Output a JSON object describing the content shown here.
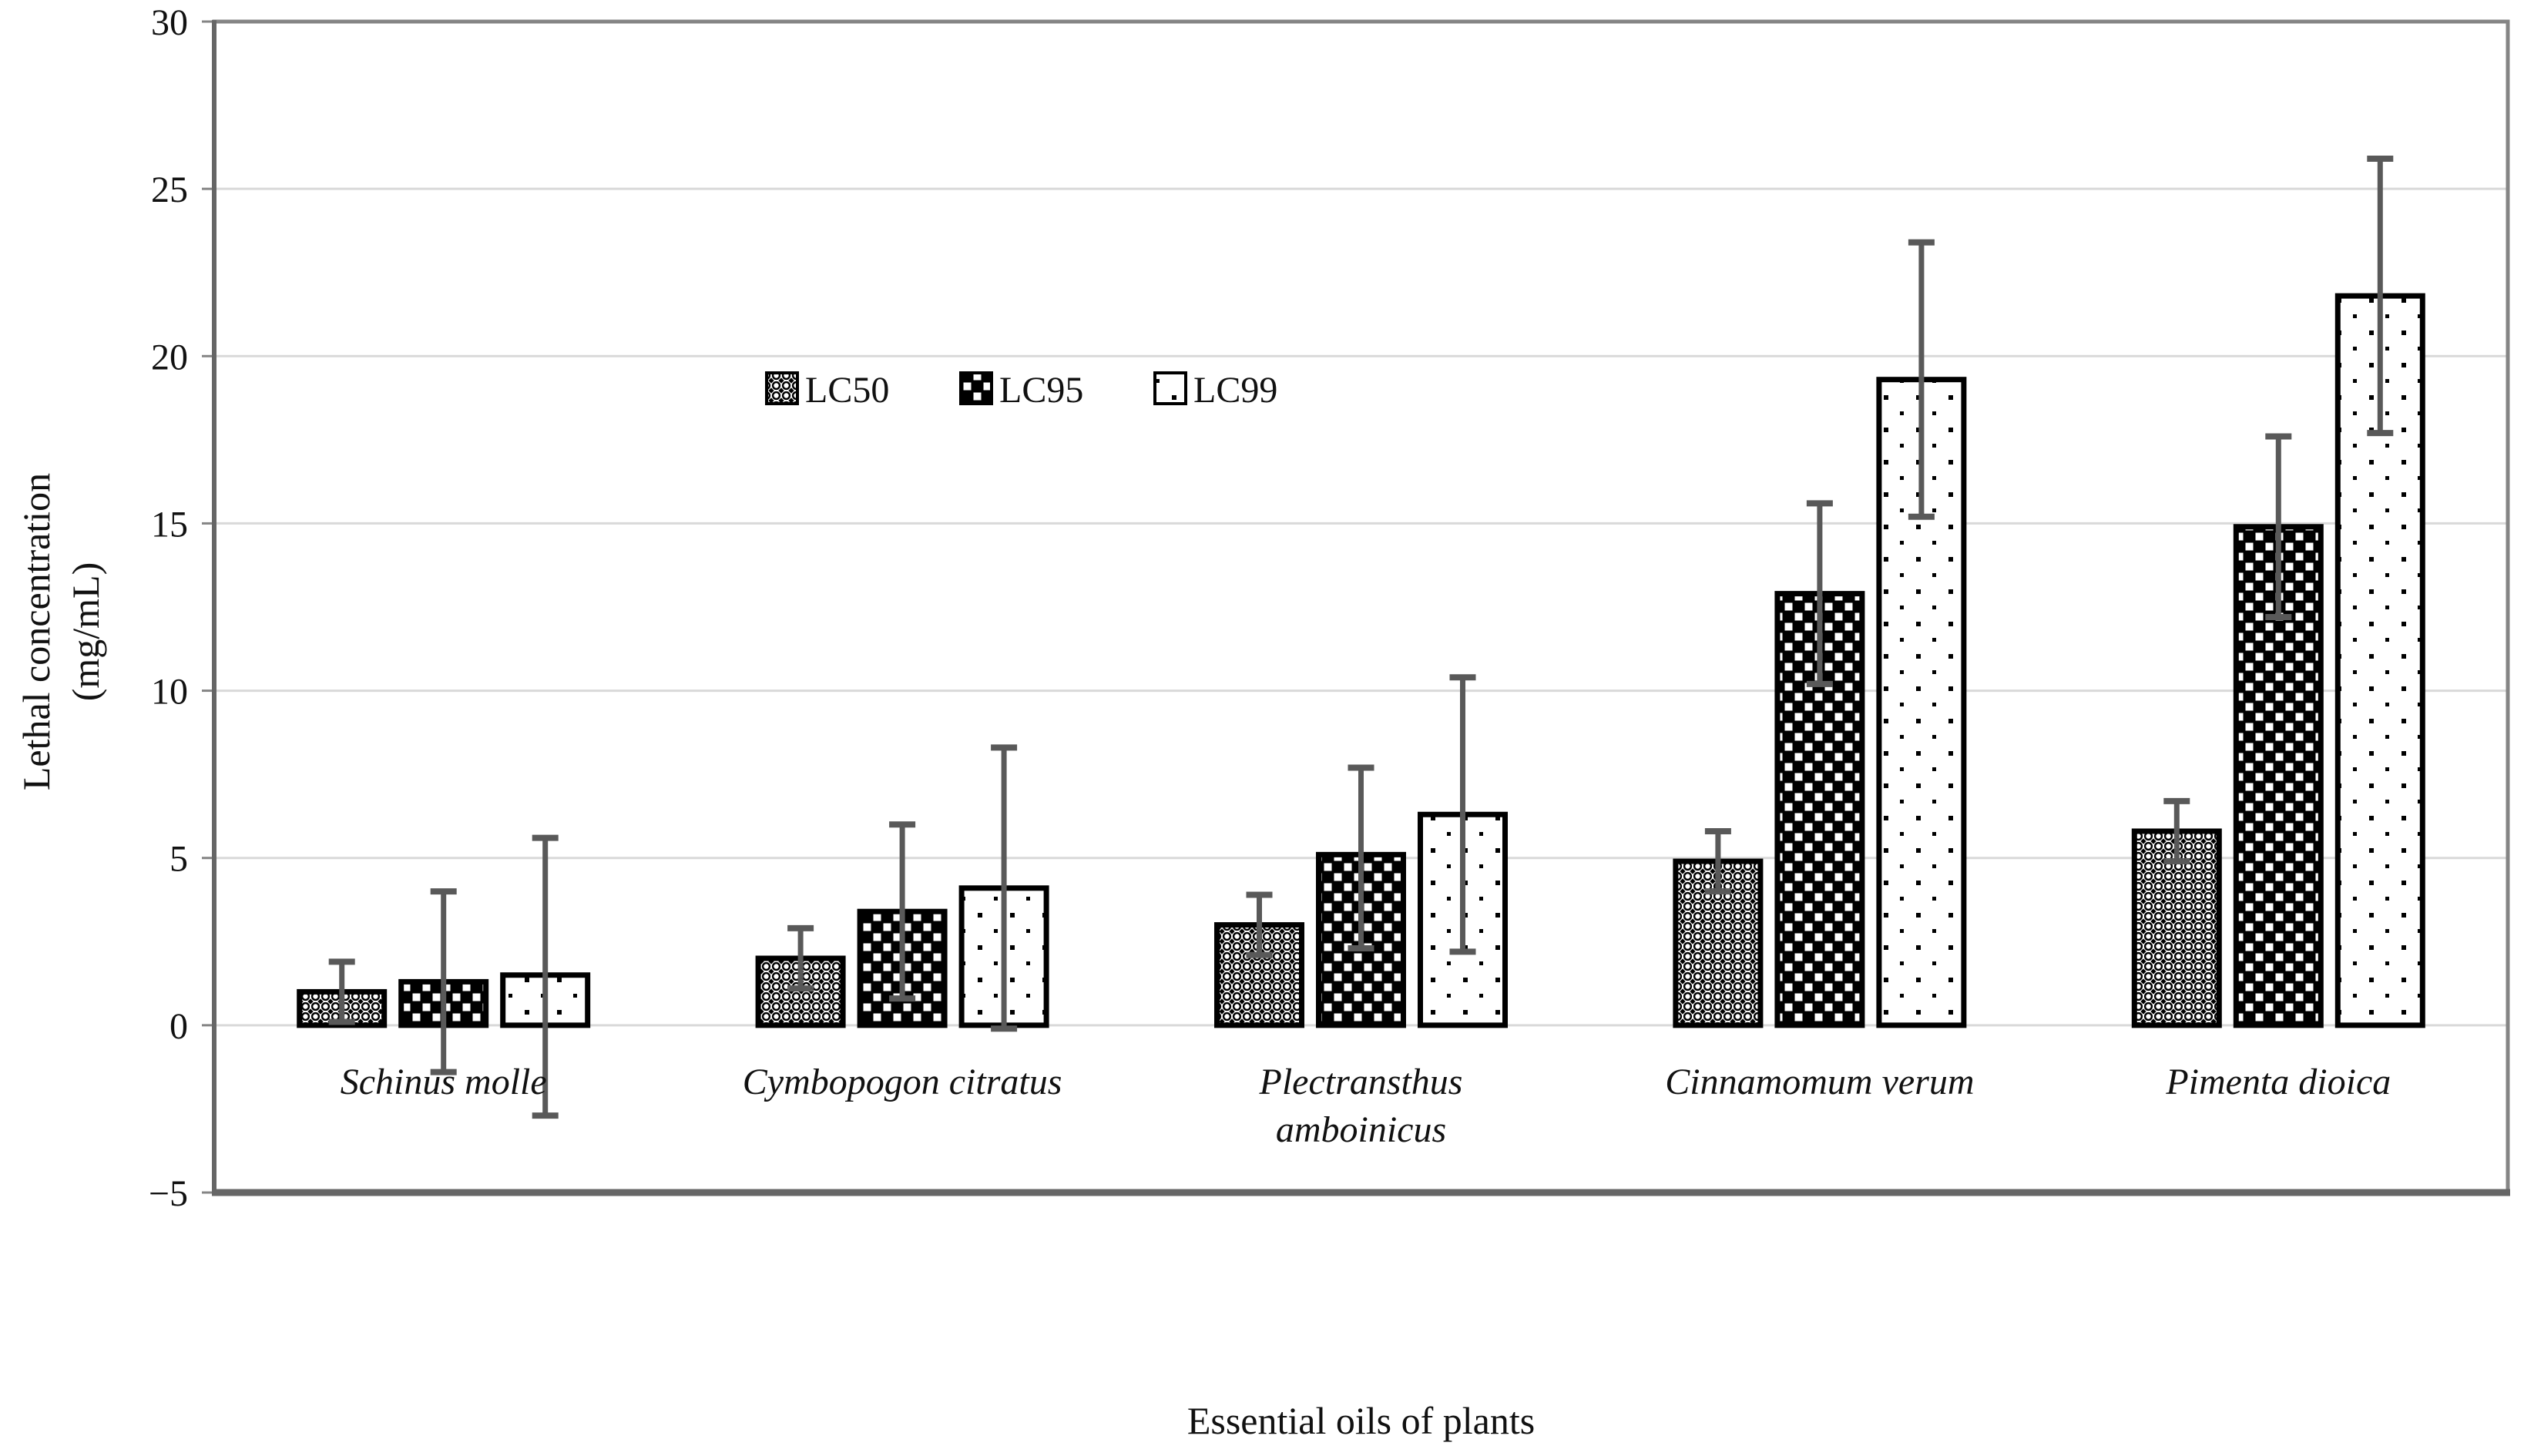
{
  "chart_data": {
    "type": "bar",
    "title": "",
    "xlabel": "Essential oils of plants",
    "ylabel_lines": [
      "Lethal concentration",
      "(mg/mL)"
    ],
    "ylim": [
      -5,
      30
    ],
    "ytick_step": 5,
    "grid": true,
    "legend_position": "inside-top, left of center",
    "yticks": [
      {
        "label": "30",
        "value": 30
      },
      {
        "label": "25",
        "value": 25
      },
      {
        "label": "20",
        "value": 20
      },
      {
        "label": "15",
        "value": 15
      },
      {
        "label": "10",
        "value": 10
      },
      {
        "label": "5",
        "value": 5
      },
      {
        "label": "0",
        "value": 0
      },
      {
        "label": "−5",
        "value": -5
      }
    ],
    "categories": [
      {
        "lines": [
          "Schinus molle"
        ]
      },
      {
        "lines": [
          "Cymbopogon citratus"
        ]
      },
      {
        "lines": [
          "Plectransthus",
          "amboinicus"
        ]
      },
      {
        "lines": [
          "Cinnamomum verum"
        ]
      },
      {
        "lines": [
          "Pimenta dioica"
        ]
      }
    ],
    "series": [
      {
        "name": "LC50",
        "pattern": "circle-lattice",
        "values": [
          1.0,
          2.0,
          3.0,
          4.9,
          5.8
        ],
        "error_low": [
          0.1,
          1.1,
          2.1,
          4.0,
          4.9
        ],
        "error_high": [
          1.9,
          2.9,
          3.9,
          5.8,
          6.7
        ]
      },
      {
        "name": "LC95",
        "pattern": "checkerboard",
        "values": [
          1.3,
          3.4,
          5.1,
          12.9,
          14.9
        ],
        "error_low": [
          -1.4,
          0.8,
          2.3,
          10.2,
          12.2
        ],
        "error_high": [
          4.0,
          6.0,
          7.7,
          15.6,
          17.6
        ]
      },
      {
        "name": "LC99",
        "pattern": "sparse-dots",
        "values": [
          1.5,
          4.1,
          6.3,
          19.3,
          21.8
        ],
        "error_low": [
          -2.7,
          -0.1,
          2.2,
          15.2,
          17.7
        ],
        "error_high": [
          5.6,
          8.3,
          10.4,
          23.4,
          25.9
        ]
      }
    ],
    "colors": {
      "bar_outline": "#000000",
      "bar_background": "#ffffff",
      "error_bar": "#595959",
      "gridline": "#d9d9d9",
      "frame": "#858585",
      "axis": "#666666",
      "text": "#111111"
    }
  }
}
